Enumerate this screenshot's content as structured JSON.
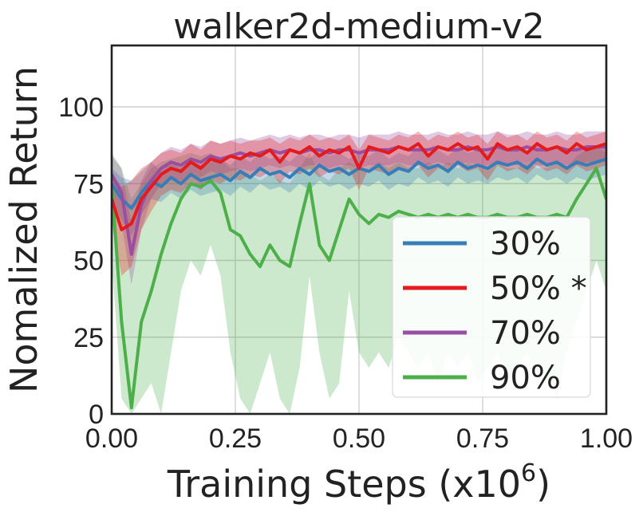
{
  "chart_data": {
    "type": "line",
    "title": "walker2d-medium-v2",
    "xlabel": "Training Steps (x10",
    "xlabel_exponent": "6",
    "xlabel_close": ")",
    "ylabel": "Nomalized Return",
    "xlim": [
      0.0,
      1.0
    ],
    "ylim": [
      0,
      120
    ],
    "xticks": [
      0.0,
      0.25,
      0.5,
      0.75,
      1.0
    ],
    "xtick_labels": [
      "0.00",
      "0.25",
      "0.50",
      "0.75",
      "1.00"
    ],
    "yticks": [
      0,
      25,
      50,
      75,
      100
    ],
    "ytick_labels": [
      "0",
      "25",
      "50",
      "75",
      "100"
    ],
    "grid": true,
    "legend_position": "lower-right",
    "series": [
      {
        "name": "30%",
        "color": "#377eb8",
        "x": [
          0.0,
          0.02,
          0.04,
          0.06,
          0.08,
          0.1,
          0.12,
          0.14,
          0.16,
          0.18,
          0.2,
          0.22,
          0.24,
          0.26,
          0.28,
          0.3,
          0.32,
          0.34,
          0.36,
          0.38,
          0.4,
          0.42,
          0.44,
          0.46,
          0.48,
          0.5,
          0.52,
          0.54,
          0.56,
          0.58,
          0.6,
          0.62,
          0.64,
          0.66,
          0.68,
          0.7,
          0.72,
          0.74,
          0.76,
          0.78,
          0.8,
          0.82,
          0.84,
          0.86,
          0.88,
          0.9,
          0.92,
          0.94,
          0.96,
          0.98,
          1.0
        ],
        "y": [
          75,
          70,
          67,
          72,
          76,
          74,
          77,
          75,
          78,
          76,
          77,
          78,
          76,
          79,
          77,
          80,
          78,
          79,
          77,
          80,
          78,
          81,
          79,
          80,
          78,
          80,
          79,
          81,
          78,
          80,
          79,
          82,
          80,
          81,
          79,
          82,
          80,
          81,
          80,
          82,
          81,
          82,
          80,
          83,
          81,
          82,
          80,
          82,
          81,
          82,
          83
        ],
        "lower": [
          70,
          63,
          58,
          65,
          70,
          69,
          72,
          70,
          73,
          71,
          72,
          73,
          71,
          74,
          72,
          75,
          73,
          74,
          72,
          75,
          73,
          76,
          74,
          75,
          73,
          75,
          74,
          76,
          73,
          75,
          74,
          77,
          75,
          76,
          74,
          77,
          75,
          76,
          75,
          77,
          76,
          77,
          75,
          78,
          76,
          77,
          75,
          77,
          76,
          77,
          78
        ],
        "upper": [
          80,
          77,
          76,
          79,
          82,
          79,
          82,
          80,
          83,
          81,
          82,
          83,
          81,
          84,
          82,
          85,
          83,
          84,
          82,
          85,
          83,
          86,
          84,
          85,
          83,
          85,
          84,
          86,
          83,
          85,
          84,
          87,
          85,
          86,
          84,
          87,
          85,
          86,
          85,
          87,
          86,
          87,
          85,
          88,
          86,
          87,
          85,
          87,
          86,
          87,
          88
        ]
      },
      {
        "name": "50% *",
        "color": "#e41a1c",
        "x": [
          0.0,
          0.02,
          0.04,
          0.06,
          0.08,
          0.1,
          0.12,
          0.14,
          0.16,
          0.18,
          0.2,
          0.22,
          0.24,
          0.26,
          0.28,
          0.3,
          0.32,
          0.34,
          0.36,
          0.38,
          0.4,
          0.42,
          0.44,
          0.46,
          0.48,
          0.5,
          0.52,
          0.54,
          0.56,
          0.58,
          0.6,
          0.62,
          0.64,
          0.66,
          0.68,
          0.7,
          0.72,
          0.74,
          0.76,
          0.78,
          0.8,
          0.82,
          0.84,
          0.86,
          0.88,
          0.9,
          0.92,
          0.94,
          0.96,
          0.98,
          1.0
        ],
        "y": [
          70,
          60,
          62,
          70,
          74,
          78,
          80,
          79,
          82,
          80,
          83,
          82,
          84,
          83,
          85,
          84,
          86,
          82,
          86,
          85,
          87,
          84,
          86,
          85,
          87,
          80,
          87,
          86,
          85,
          87,
          86,
          88,
          84,
          87,
          86,
          88,
          86,
          87,
          83,
          88,
          86,
          87,
          85,
          88,
          86,
          87,
          85,
          88,
          86,
          87,
          88
        ],
        "lower": [
          62,
          45,
          48,
          60,
          66,
          71,
          73,
          72,
          75,
          73,
          76,
          75,
          77,
          76,
          78,
          77,
          79,
          75,
          79,
          78,
          80,
          77,
          79,
          78,
          80,
          73,
          80,
          79,
          78,
          80,
          79,
          81,
          77,
          80,
          79,
          81,
          79,
          80,
          76,
          81,
          79,
          80,
          78,
          81,
          79,
          80,
          78,
          81,
          79,
          80,
          81
        ],
        "upper": [
          78,
          74,
          76,
          80,
          82,
          85,
          86,
          85,
          88,
          86,
          89,
          88,
          89,
          88,
          89,
          89,
          90,
          88,
          90,
          89,
          91,
          89,
          90,
          89,
          91,
          86,
          91,
          90,
          89,
          91,
          90,
          92,
          89,
          91,
          90,
          92,
          90,
          91,
          88,
          92,
          90,
          91,
          89,
          92,
          90,
          91,
          89,
          92,
          90,
          91,
          92
        ]
      },
      {
        "name": "70%",
        "color": "#984ea3",
        "x": [
          0.0,
          0.02,
          0.04,
          0.06,
          0.08,
          0.1,
          0.12,
          0.14,
          0.16,
          0.18,
          0.2,
          0.22,
          0.24,
          0.26,
          0.28,
          0.3,
          0.32,
          0.34,
          0.36,
          0.38,
          0.4,
          0.42,
          0.44,
          0.46,
          0.48,
          0.5,
          0.52,
          0.54,
          0.56,
          0.58,
          0.6,
          0.62,
          0.64,
          0.66,
          0.68,
          0.7,
          0.72,
          0.74,
          0.76,
          0.78,
          0.8,
          0.82,
          0.84,
          0.86,
          0.88,
          0.9,
          0.92,
          0.94,
          0.96,
          0.98,
          1.0
        ],
        "y": [
          78,
          72,
          52,
          68,
          76,
          80,
          82,
          81,
          83,
          82,
          84,
          83,
          84,
          85,
          84,
          85,
          86,
          85,
          86,
          85,
          86,
          86,
          85,
          86,
          86,
          85,
          86,
          86,
          86,
          87,
          86,
          86,
          86,
          87,
          86,
          86,
          87,
          86,
          86,
          87,
          86,
          86,
          87,
          86,
          86,
          87,
          86,
          86,
          87,
          87,
          87
        ],
        "lower": [
          72,
          62,
          42,
          60,
          70,
          75,
          77,
          76,
          78,
          77,
          79,
          78,
          79,
          80,
          79,
          80,
          81,
          80,
          81,
          80,
          81,
          81,
          80,
          81,
          81,
          80,
          81,
          81,
          81,
          82,
          81,
          81,
          81,
          82,
          81,
          81,
          82,
          81,
          81,
          82,
          81,
          81,
          82,
          81,
          81,
          82,
          81,
          81,
          82,
          82,
          82
        ],
        "upper": [
          84,
          80,
          62,
          76,
          82,
          85,
          87,
          86,
          88,
          87,
          89,
          88,
          89,
          90,
          89,
          90,
          91,
          90,
          91,
          90,
          91,
          91,
          90,
          91,
          91,
          90,
          91,
          91,
          91,
          92,
          91,
          91,
          91,
          92,
          91,
          91,
          92,
          91,
          91,
          92,
          91,
          91,
          92,
          91,
          91,
          92,
          91,
          91,
          92,
          92,
          92
        ]
      },
      {
        "name": "90%",
        "color": "#4daf4a",
        "x": [
          0.0,
          0.02,
          0.04,
          0.06,
          0.08,
          0.1,
          0.12,
          0.14,
          0.16,
          0.18,
          0.2,
          0.22,
          0.24,
          0.26,
          0.28,
          0.3,
          0.32,
          0.34,
          0.36,
          0.38,
          0.4,
          0.42,
          0.44,
          0.46,
          0.48,
          0.5,
          0.52,
          0.54,
          0.56,
          0.58,
          0.6,
          0.62,
          0.64,
          0.66,
          0.68,
          0.7,
          0.72,
          0.74,
          0.76,
          0.78,
          0.8,
          0.82,
          0.84,
          0.86,
          0.88,
          0.9,
          0.92,
          0.94,
          0.96,
          0.98,
          1.0
        ],
        "y": [
          75,
          30,
          2,
          30,
          40,
          52,
          62,
          70,
          75,
          74,
          76,
          72,
          60,
          58,
          52,
          48,
          55,
          50,
          48,
          62,
          75,
          55,
          50,
          60,
          70,
          65,
          62,
          65,
          64,
          66,
          65,
          64,
          65,
          64,
          65,
          64,
          65,
          64,
          64,
          65,
          64,
          64,
          65,
          64,
          64,
          65,
          64,
          70,
          75,
          80,
          70
        ],
        "lower": [
          50,
          5,
          0,
          5,
          10,
          0,
          20,
          40,
          50,
          45,
          55,
          45,
          20,
          5,
          0,
          10,
          20,
          5,
          0,
          15,
          45,
          20,
          5,
          10,
          40,
          20,
          15,
          20,
          15,
          25,
          20,
          15,
          20,
          10,
          20,
          15,
          20,
          10,
          15,
          20,
          10,
          15,
          20,
          10,
          15,
          5,
          20,
          30,
          40,
          50,
          40
        ],
        "upper": [
          85,
          80,
          70,
          75,
          80,
          82,
          83,
          84,
          85,
          84,
          85,
          83,
          80,
          80,
          78,
          76,
          78,
          76,
          75,
          80,
          85,
          78,
          76,
          80,
          82,
          80,
          80,
          82,
          80,
          82,
          80,
          80,
          82,
          80,
          82,
          80,
          82,
          80,
          80,
          82,
          80,
          80,
          82,
          80,
          80,
          82,
          80,
          84,
          86,
          87,
          85
        ]
      }
    ]
  }
}
